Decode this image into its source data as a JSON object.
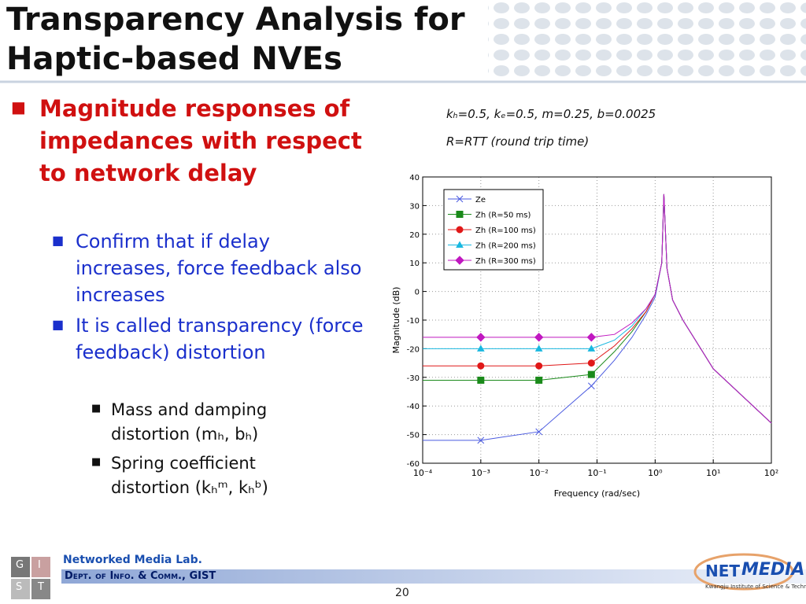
{
  "header": {
    "title": "Transparency Analysis for Haptic-based NVEs"
  },
  "bullets": {
    "main": "Magnitude responses of impedances with respect to network delay",
    "sub": [
      "Confirm that if delay increases, force feedback also increases",
      "It is called transparency (force feedback) distortion"
    ],
    "subsub": [
      "Mass and damping distortion (mₕ, bₕ)",
      "Spring coefficient distortion (kₕᵐ, kₕᵇ)"
    ]
  },
  "notes": [
    "kₕ=0.5, kₑ=0.5, m=0.25, b=0.0025",
    "R=RTT (round trip time)"
  ],
  "chart_data": {
    "type": "line",
    "xlabel": "Frequency  (rad/sec)",
    "ylabel": "Magnitude (dB)",
    "x": [
      0.0001,
      0.001,
      0.01,
      0.08,
      0.2,
      0.4,
      0.7,
      1,
      1.3,
      1.414,
      1.6,
      2,
      3,
      10,
      100
    ],
    "xlog": true,
    "xlim": [
      0.0001,
      100
    ],
    "xticks": [
      {
        "value": 0.0001,
        "label": "10⁻⁴"
      },
      {
        "value": 0.001,
        "label": "10⁻³"
      },
      {
        "value": 0.01,
        "label": "10⁻²"
      },
      {
        "value": 0.1,
        "label": "10⁻¹"
      },
      {
        "value": 1,
        "label": "10⁰"
      },
      {
        "value": 10,
        "label": "10¹"
      },
      {
        "value": 100,
        "label": "10²"
      }
    ],
    "ylim": [
      -60,
      40
    ],
    "yticks": [
      -60,
      -50,
      -40,
      -30,
      -20,
      -10,
      0,
      10,
      20,
      30,
      40
    ],
    "grid": true,
    "legend": "upper left",
    "series": [
      {
        "name": "Ze",
        "color": "#4a5ae0",
        "marker": "x",
        "values": [
          -52,
          -52,
          -49,
          -33,
          -24,
          -16,
          -8,
          -2,
          10,
          34,
          8,
          -3,
          -10,
          -27,
          -46
        ]
      },
      {
        "name": "Zh (R=50 ms)",
        "color": "#1a8a1a",
        "marker": "s",
        "values": [
          -31,
          -31,
          -31,
          -29,
          -21,
          -14,
          -7,
          -1,
          10,
          34,
          8,
          -3,
          -10,
          -27,
          -46
        ]
      },
      {
        "name": "Zh (R=100 ms)",
        "color": "#e01818",
        "marker": "o",
        "values": [
          -26,
          -26,
          -26,
          -25,
          -19,
          -13,
          -7,
          -1,
          10,
          34,
          8,
          -3,
          -10,
          -27,
          -46
        ]
      },
      {
        "name": "Zh (R=200 ms)",
        "color": "#18b8e0",
        "marker": "^",
        "values": [
          -20,
          -20,
          -20,
          -20,
          -17,
          -12,
          -6,
          -1,
          10,
          34,
          8,
          -3,
          -10,
          -27,
          -46
        ]
      },
      {
        "name": "Zh (R=300 ms)",
        "color": "#c018c0",
        "marker": "D",
        "values": [
          -16,
          -16,
          -16,
          -16,
          -15,
          -11,
          -6,
          -1,
          10,
          34,
          8,
          -3,
          -10,
          -27,
          -46
        ]
      }
    ]
  },
  "footer": {
    "lab": "Networked Media Lab.",
    "dept": "Dept. of Info. & Comm., GIST",
    "page": "20",
    "logo_letters": [
      "G",
      "I",
      "S",
      "T"
    ],
    "logo_net": "NET",
    "logo_media": "MEDIA",
    "logo_sub": "Kwangju Institute of Science & Technology"
  }
}
